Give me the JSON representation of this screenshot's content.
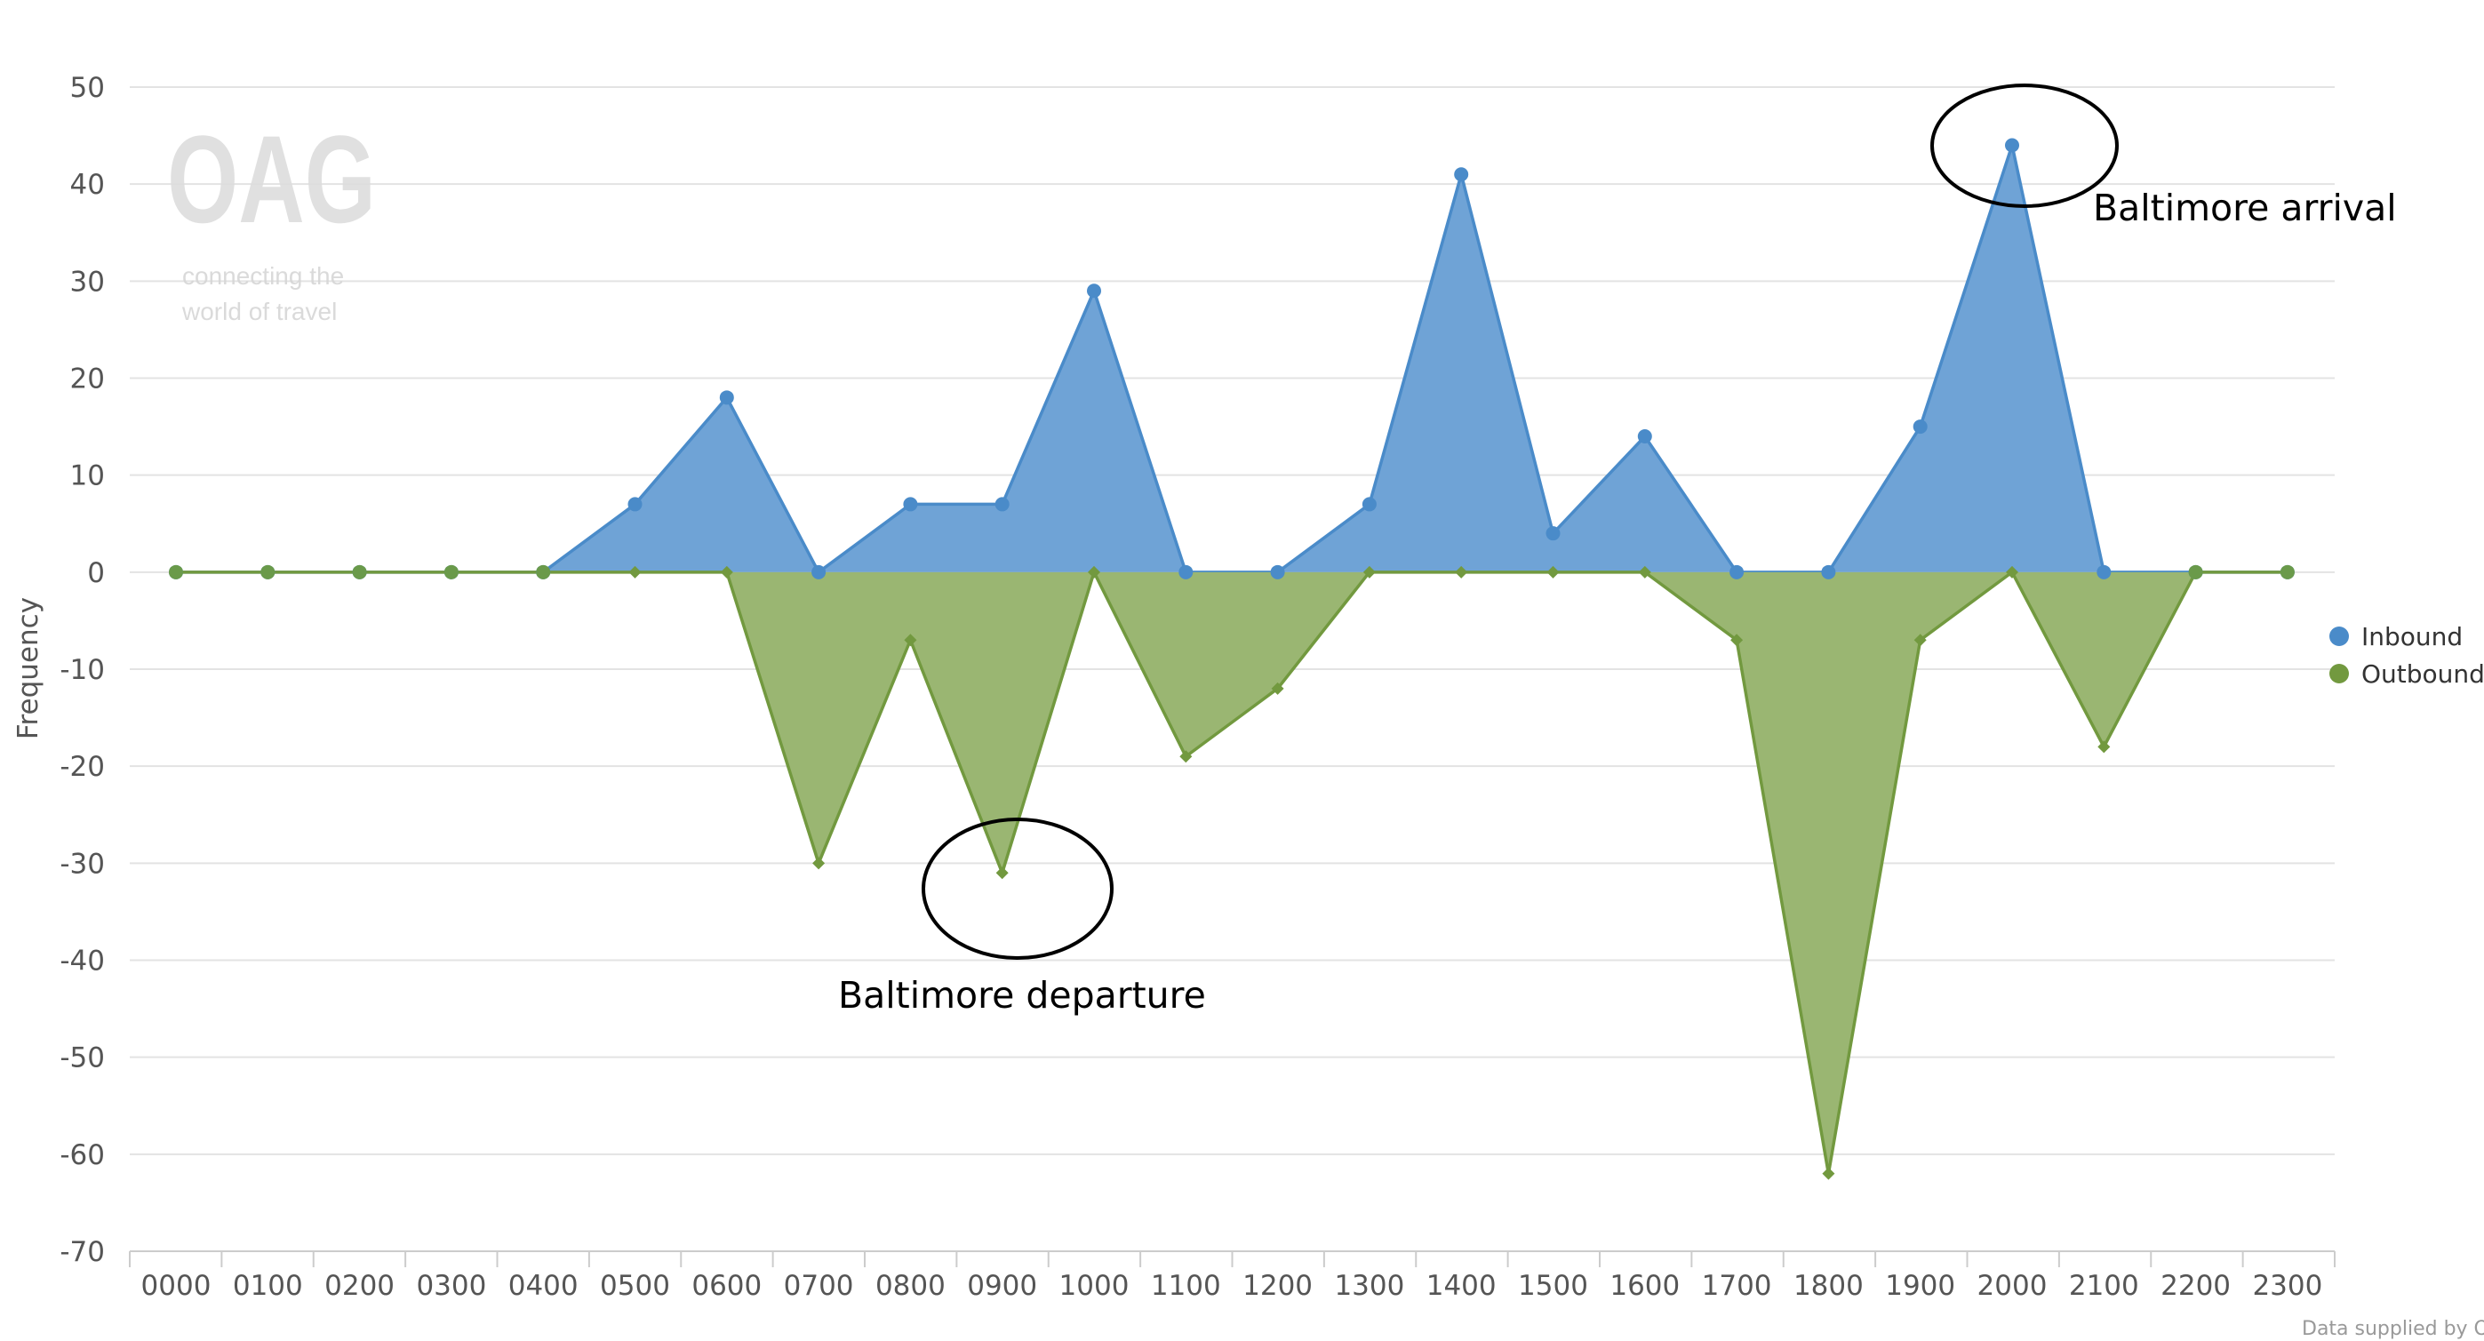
{
  "chart_data": {
    "type": "area",
    "ylabel": "Frequency",
    "xlabel": "",
    "ylim": [
      -70,
      50
    ],
    "yticks": [
      50,
      40,
      30,
      20,
      10,
      0,
      -10,
      -20,
      -30,
      -40,
      -50,
      -60,
      -70
    ],
    "grid": true,
    "legend_position": "right",
    "categories": [
      "0000",
      "0100",
      "0200",
      "0300",
      "0400",
      "0500",
      "0600",
      "0700",
      "0800",
      "0900",
      "1000",
      "1100",
      "1200",
      "1300",
      "1400",
      "1500",
      "1600",
      "1700",
      "1800",
      "1900",
      "2000",
      "2100",
      "2200",
      "2300"
    ],
    "series": [
      {
        "name": "Inbound",
        "color": "#4a8bc9",
        "fill": "#6fa3d6",
        "marker": "circle",
        "values": [
          0,
          0,
          0,
          0,
          0,
          7,
          18,
          0,
          7,
          7,
          29,
          0,
          0,
          7,
          41,
          4,
          14,
          0,
          0,
          15,
          44,
          0,
          0,
          0
        ]
      },
      {
        "name": "Outbound",
        "color": "#72993f",
        "fill": "#9ab672",
        "marker": "diamond",
        "values": [
          0,
          0,
          0,
          0,
          0,
          0,
          0,
          -30,
          -7,
          -31,
          0,
          -19,
          -12,
          0,
          0,
          0,
          0,
          -7,
          -62,
          -7,
          0,
          -18,
          0,
          0
        ]
      }
    ],
    "annotations": [
      {
        "text": "Baltimore arrival",
        "category": "2000",
        "value": 44
      },
      {
        "text": "Baltimore departure",
        "category": "0900",
        "value": -31
      }
    ]
  },
  "watermark": {
    "logo": "OAG",
    "tagline_1": "connecting the",
    "tagline_2": "world of travel"
  },
  "footer": "Data supplied by OAG"
}
